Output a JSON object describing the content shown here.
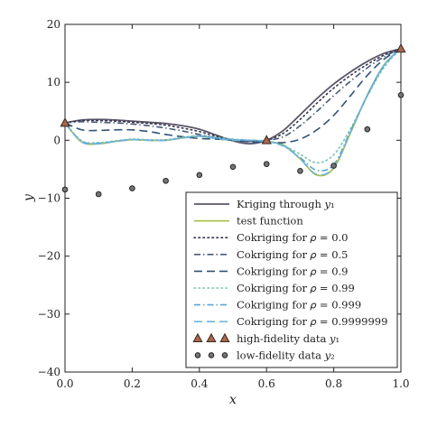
{
  "chart_data": {
    "type": "line",
    "xlabel": "x",
    "ylabel": "y",
    "xlim": [
      0.0,
      1.0
    ],
    "ylim": [
      -40,
      20
    ],
    "xticks": [
      "0.0",
      "0.2",
      "0.4",
      "0.6",
      "0.8",
      "1.0"
    ],
    "yticks": [
      "20",
      "10",
      "0",
      "−10",
      "−20",
      "−30",
      "−40"
    ],
    "x": [
      0.0,
      0.05,
      0.1,
      0.15,
      0.2,
      0.25,
      0.3,
      0.35,
      0.4,
      0.45,
      0.5,
      0.55,
      0.6,
      0.65,
      0.7,
      0.75,
      0.8,
      0.85,
      0.9,
      0.95,
      1.0
    ],
    "series": [
      {
        "name": "Kriging through y1",
        "legend_label": "Kriging through 𝑦₁",
        "style": "solid",
        "color": "#5b5568",
        "width": 1.8,
        "values": [
          3.0,
          3.5,
          3.6,
          3.5,
          3.3,
          3.1,
          2.9,
          2.5,
          1.9,
          0.9,
          -0.1,
          -0.6,
          0.0,
          1.7,
          4.4,
          7.2,
          9.7,
          11.8,
          13.6,
          15.0,
          15.8
        ]
      },
      {
        "name": "test function",
        "legend_label": "test function",
        "style": "solid",
        "color": "#a9c24f",
        "width": 1.8,
        "values": [
          3.0,
          -0.3,
          -0.6,
          -0.2,
          0.1,
          0.0,
          0.0,
          0.4,
          0.7,
          0.3,
          0.0,
          0.0,
          -0.2,
          -0.8,
          -3.2,
          -6.0,
          -4.8,
          1.3,
          7.8,
          13.0,
          15.8
        ]
      },
      {
        "name": "Cokriging for rho = 0.0",
        "legend_label": "Cokriging for 𝜌 = 0.0",
        "style": "dotted",
        "color": "#33334d",
        "width": 1.6,
        "values": [
          3.0,
          3.4,
          3.4,
          3.3,
          3.1,
          2.9,
          2.6,
          2.1,
          1.5,
          0.7,
          0.1,
          -0.2,
          0.0,
          1.2,
          3.6,
          6.4,
          9.0,
          11.2,
          13.1,
          14.7,
          15.8
        ]
      },
      {
        "name": "Cokriging for rho = 0.5",
        "legend_label": "Cokriging for 𝜌 = 0.5",
        "style": "dashdot",
        "color": "#4a5a78",
        "width": 1.6,
        "values": [
          3.0,
          3.2,
          3.1,
          3.0,
          2.8,
          2.5,
          2.1,
          1.6,
          1.0,
          0.4,
          0.0,
          -0.2,
          0.0,
          0.6,
          2.5,
          5.0,
          7.7,
          10.2,
          12.5,
          14.4,
          15.8
        ]
      },
      {
        "name": "Cokriging for rho = 0.9",
        "legend_label": "Cokriging for 𝜌 = 0.9",
        "style": "longdash",
        "color": "#2f5277",
        "width": 1.6,
        "values": [
          3.0,
          1.8,
          1.7,
          1.8,
          1.8,
          1.5,
          1.0,
          0.6,
          0.3,
          0.2,
          0.0,
          -0.3,
          -0.3,
          -0.4,
          0.2,
          1.8,
          4.3,
          7.7,
          11.2,
          14.0,
          15.8
        ]
      },
      {
        "name": "Cokriging for rho = 0.99",
        "legend_label": "Cokriging for 𝜌 = 0.99",
        "style": "dotted",
        "color": "#77c3b4",
        "width": 1.6,
        "values": [
          3.0,
          -0.1,
          -0.4,
          -0.1,
          0.2,
          0.1,
          0.1,
          0.5,
          0.8,
          0.5,
          0.2,
          0.0,
          -0.2,
          -0.9,
          -2.4,
          -3.9,
          -2.5,
          2.0,
          7.6,
          12.6,
          15.8
        ]
      },
      {
        "name": "Cokriging for rho = 0.999",
        "legend_label": "Cokriging for 𝜌 = 0.999",
        "style": "dashdot",
        "color": "#5aa6d3",
        "width": 1.6,
        "values": [
          3.0,
          -0.2,
          -0.5,
          -0.2,
          0.1,
          0.0,
          0.0,
          0.4,
          0.7,
          0.4,
          0.1,
          0.0,
          -0.2,
          -1.0,
          -3.0,
          -5.2,
          -4.2,
          1.6,
          7.7,
          12.9,
          15.8
        ]
      },
      {
        "name": "Cokriging for rho = 0.9999999",
        "legend_label": "Cokriging for 𝜌 = 0.9999999",
        "style": "longdash",
        "color": "#6cb3e0",
        "width": 1.6,
        "values": [
          3.0,
          -0.3,
          -0.6,
          -0.2,
          0.1,
          0.0,
          0.0,
          0.4,
          0.7,
          0.3,
          0.0,
          0.0,
          -0.2,
          -0.9,
          -3.2,
          -5.9,
          -4.7,
          1.4,
          7.8,
          13.0,
          15.8
        ]
      }
    ],
    "points": [
      {
        "name": "high-fidelity data y1",
        "legend_label": "high-fidelity data 𝑦₁",
        "marker": "triangle",
        "fill": "#a8664a",
        "stroke": "#3a2a22",
        "x": [
          0.0,
          0.6,
          1.0
        ],
        "y": [
          3.0,
          0.0,
          15.8
        ]
      },
      {
        "name": "low-fidelity data y2",
        "legend_label": "low-fidelity data 𝑦₂",
        "marker": "circle",
        "fill": "#7a7378",
        "stroke": "#222222",
        "x": [
          0.0,
          0.1,
          0.2,
          0.3,
          0.4,
          0.5,
          0.6,
          0.7,
          0.8,
          0.9,
          1.0
        ],
        "y": [
          -8.5,
          -9.3,
          -8.3,
          -7.0,
          -6.0,
          -4.6,
          -4.1,
          -5.3,
          -4.4,
          1.9,
          7.8
        ]
      }
    ],
    "grid": false,
    "legend_position": "lower-right"
  }
}
